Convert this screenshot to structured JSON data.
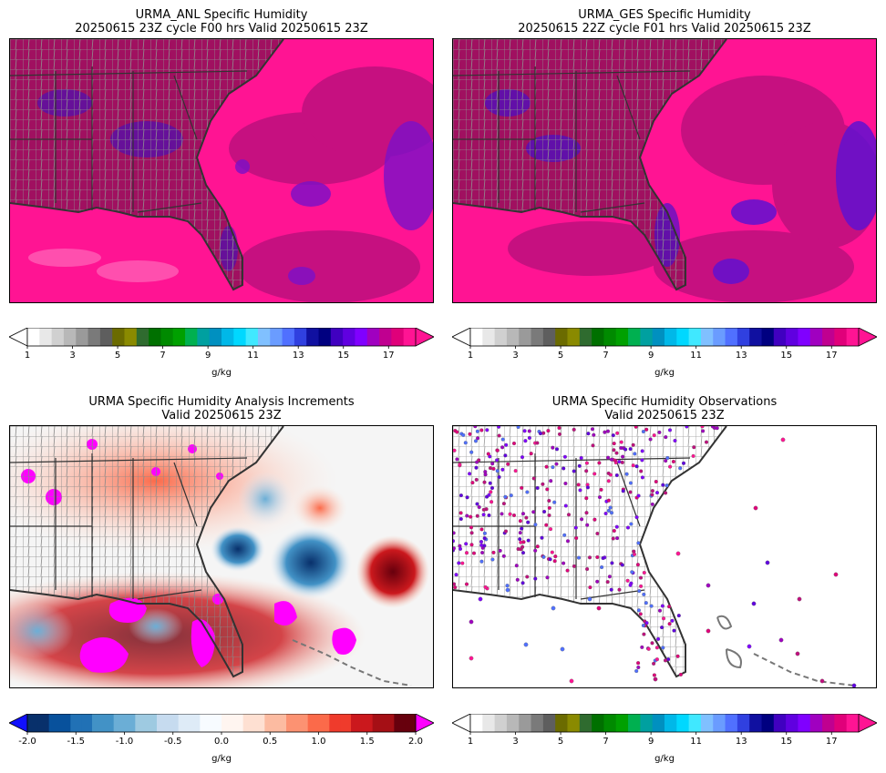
{
  "panels": [
    {
      "title": "URMA_ANL Specific Humidity\n20250615 23Z cycle F00 hrs Valid 20250615 23Z"
    },
    {
      "title": "URMA_GES Specific Humidity\n20250615 22Z cycle F01 hrs Valid 20250615 23Z"
    },
    {
      "title": "URMA Specific Humidity Analysis Increments\nValid 20250615 23Z"
    },
    {
      "title": "URMA Specific Humidity Observations\nValid 20250615 23Z"
    }
  ],
  "colorbars": [
    {
      "name": "q-scale-anl",
      "units": "g/kg",
      "ticks": [
        "1",
        "3",
        "5",
        "7",
        "9",
        "11",
        "13",
        "15",
        "17"
      ],
      "range": [
        1,
        18.2
      ]
    },
    {
      "name": "q-scale-ges",
      "units": "g/kg",
      "ticks": [
        "1",
        "3",
        "5",
        "7",
        "9",
        "11",
        "13",
        "15",
        "17"
      ],
      "range": [
        1,
        18.2
      ]
    },
    {
      "name": "increment-scale",
      "units": "g/kg",
      "ticks": [
        "-2.0",
        "-1.5",
        "-1.0",
        "-0.5",
        "0.0",
        "0.5",
        "1.0",
        "1.5",
        "2.0"
      ],
      "range": [
        -2.0,
        2.0
      ]
    },
    {
      "name": "q-scale-obs",
      "units": "g/kg",
      "ticks": [
        "1",
        "3",
        "5",
        "7",
        "9",
        "11",
        "13",
        "15",
        "17"
      ],
      "range": [
        1,
        18.2
      ]
    }
  ],
  "colors": {
    "humidity_scale": [
      "#ffffff",
      "#e8e8e8",
      "#d0d0d0",
      "#b8b8b8",
      "#9a9a9a",
      "#7a7a7a",
      "#5e5e5e",
      "#6b6b00",
      "#8a8a00",
      "#2f6b2f",
      "#007000",
      "#008a00",
      "#00a000",
      "#00b050",
      "#00a0a0",
      "#0090c0",
      "#00b8e8",
      "#00d8ff",
      "#40e8ff",
      "#80c0ff",
      "#6a9cff",
      "#5070ff",
      "#3040e0",
      "#1010a0",
      "#000080",
      "#4000c0",
      "#6000e0",
      "#8000ff",
      "#a000c0",
      "#c00090",
      "#e0007a",
      "#ff1493"
    ],
    "increment_scale": [
      "#08306b",
      "#08519c",
      "#2171b5",
      "#4292c6",
      "#6baed6",
      "#9ecae1",
      "#c6dbef",
      "#deebf7",
      "#f7fbff",
      "#fff5f0",
      "#fee0d2",
      "#fcbba1",
      "#fc9272",
      "#fb6a4a",
      "#ef3b2c",
      "#cb181d",
      "#a50f15",
      "#67000d"
    ],
    "high_humidity": "#ff1493",
    "under_color": "#1010ff",
    "over_color_increment": "#ff00ff",
    "land_fill": "#a01060",
    "county_lines": "#808080",
    "coastline": "#333333"
  },
  "chart_data": [
    {
      "type": "heatmap",
      "title": "URMA_ANL Specific Humidity",
      "subtitle": "20250615 23Z cycle F00 hrs Valid 20250615 23Z",
      "colorbar_label": "g/kg",
      "colorbar_ticks": [
        1,
        3,
        5,
        7,
        9,
        11,
        13,
        15,
        17
      ],
      "field": "specific humidity",
      "note": "values mostly 15-18 g/kg; lower (~13-15) offshore east and scattered inland"
    },
    {
      "type": "heatmap",
      "title": "URMA_GES Specific Humidity",
      "subtitle": "20250615 22Z cycle F01 hrs Valid 20250615 23Z",
      "colorbar_label": "g/kg",
      "colorbar_ticks": [
        1,
        3,
        5,
        7,
        9,
        11,
        13,
        15,
        17
      ]
    },
    {
      "type": "heatmap",
      "title": "URMA Specific Humidity Analysis Increments",
      "subtitle": "Valid 20250615 23Z",
      "colorbar_label": "g/kg",
      "colorbar_ticks": [
        -2.0,
        -1.5,
        -1.0,
        -0.5,
        0.0,
        0.5,
        1.0,
        1.5,
        2.0
      ]
    },
    {
      "type": "scatter",
      "title": "URMA Specific Humidity Observations",
      "subtitle": "Valid 20250615 23Z",
      "colorbar_label": "g/kg",
      "colorbar_ticks": [
        1,
        3,
        5,
        7,
        9,
        11,
        13,
        15,
        17
      ]
    }
  ]
}
